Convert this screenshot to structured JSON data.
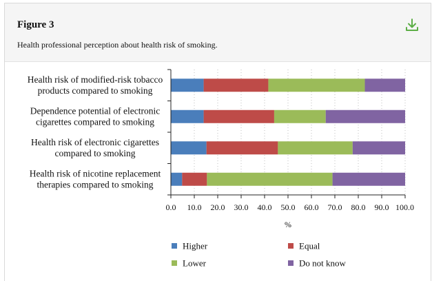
{
  "figure": {
    "title": "Figure 3",
    "caption": "Health professional perception about health risk of smoking.",
    "download_icon": "download-icon",
    "accent_color": "#5cae46"
  },
  "chart_data": {
    "type": "bar",
    "orientation": "horizontal",
    "stacked": true,
    "categories": [
      "Health risk of modified-risk tobacco products compared to smoking",
      "Dependence potential of electronic cigarettes compared to smoking",
      "Health risk of electronic cigarettes compared to smoking",
      "Health risk of nicotine replacement therapies compared to smoking"
    ],
    "category_lines": [
      [
        "Health risk of modified-risk tobacco",
        "products compared to smoking"
      ],
      [
        "Dependence potential of electronic",
        "cigarettes compared to smoking"
      ],
      [
        "Health risk of electronic cigarettes",
        "compared to smoking"
      ],
      [
        "Health risk of nicotine replacement",
        "therapies compared to smoking"
      ]
    ],
    "series": [
      {
        "name": "Higher",
        "color": "#4a7ebb",
        "values": [
          14,
          14,
          15.2,
          4.8
        ]
      },
      {
        "name": "Equal",
        "color": "#be4b48",
        "values": [
          27.6,
          30.1,
          30.5,
          10.6
        ]
      },
      {
        "name": "Lower",
        "color": "#9bbb59",
        "values": [
          41.2,
          22,
          31.9,
          53.6
        ]
      },
      {
        "name": "Do not know",
        "color": "#8064a2",
        "values": [
          17.2,
          33.9,
          22.4,
          31
        ]
      }
    ],
    "xlabel": "%",
    "xlim": [
      0,
      100
    ],
    "xticks": [
      "0.0",
      "10.0",
      "20.0",
      "30.0",
      "40.0",
      "50.0",
      "60.0",
      "70.0",
      "80.0",
      "90.0",
      "100.0"
    ],
    "grid": "vertical dotted",
    "legend": "bottom"
  }
}
